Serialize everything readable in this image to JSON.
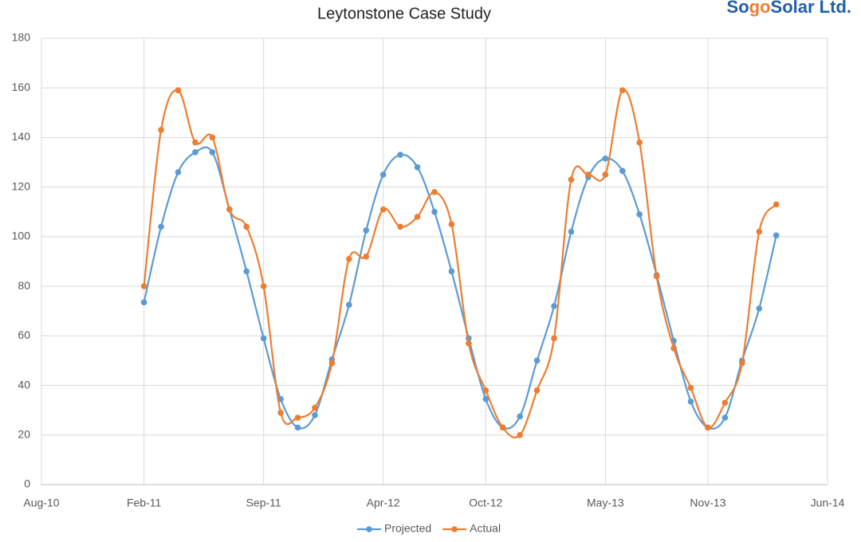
{
  "chart_data": {
    "type": "line",
    "title": "Leytonstone Case Study",
    "logo": [
      "So",
      "go",
      "Solar Ltd."
    ],
    "x": [
      "Feb-11",
      "Mar-11",
      "Apr-11",
      "May-11",
      "Jun-11",
      "Jul-11",
      "Aug-11",
      "Sep-11",
      "Oct-11",
      "Nov-11",
      "Dec-11",
      "Jan-12",
      "Feb-12",
      "Mar-12",
      "Apr-12",
      "May-12",
      "Jun-12",
      "Jul-12",
      "Aug-12",
      "Sep-12",
      "Oct-12",
      "Nov-12",
      "Dec-12",
      "Jan-13",
      "Feb-13",
      "Mar-13",
      "Apr-13",
      "May-13",
      "Jun-13",
      "Jul-13",
      "Aug-13",
      "Sep-13",
      "Oct-13",
      "Nov-13",
      "Dec-13",
      "Jan-14",
      "Feb-14",
      "Mar-14"
    ],
    "series": [
      {
        "name": "Projected",
        "color": "#5b9bd5",
        "values": [
          73.5,
          104,
          126,
          134,
          134,
          111,
          86,
          59,
          34.5,
          23,
          28,
          50.5,
          72.5,
          102.5,
          125,
          133,
          128,
          110,
          86,
          59,
          34.5,
          23,
          27.5,
          50,
          72,
          102,
          124,
          131.5,
          126.5,
          109,
          84.5,
          58,
          33.5,
          23,
          27,
          50,
          71,
          100.5
        ]
      },
      {
        "name": "Actual",
        "color": "#ed7d31",
        "values": [
          80,
          143,
          159,
          138,
          140,
          111,
          104,
          80,
          29,
          27,
          31,
          49,
          91,
          92,
          111,
          104,
          108,
          118,
          105,
          57,
          38,
          23,
          20,
          38,
          59,
          123,
          125,
          125,
          159,
          138,
          84,
          55,
          39,
          23,
          33,
          49,
          102,
          113
        ]
      }
    ],
    "xlim": [
      "Aug-10",
      "Jun-14"
    ],
    "xticks": [
      "Aug-10",
      "Feb-11",
      "Sep-11",
      "Apr-12",
      "Oct-12",
      "May-13",
      "Nov-13",
      "Jun-14"
    ],
    "ylim": [
      0,
      180
    ],
    "yticks": [
      0,
      20,
      40,
      60,
      80,
      100,
      120,
      140,
      160,
      180
    ],
    "grid": true,
    "smooth": true,
    "legend": "bottom"
  }
}
